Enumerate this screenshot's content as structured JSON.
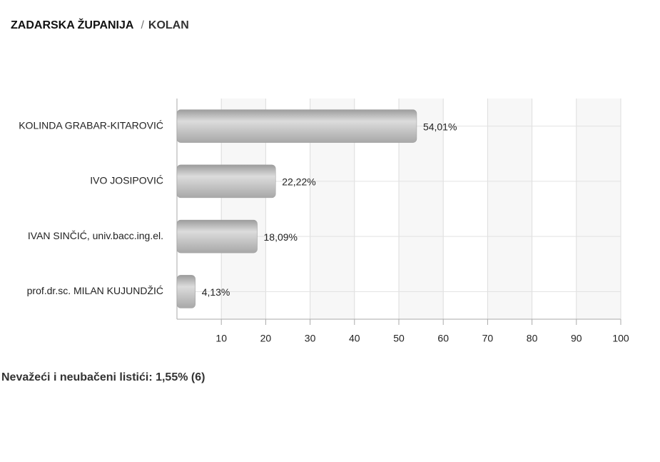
{
  "header": {
    "region": "ZADARSKA ŽUPANIJA",
    "separator": "/",
    "place": "KOLAN"
  },
  "chart_data": {
    "type": "bar",
    "orientation": "horizontal",
    "categories": [
      "KOLINDA GRABAR-KITAROVIĆ",
      "IVO JOSIPOVIĆ",
      "IVAN SINČIĆ, univ.bacc.ing.el.",
      "prof.dr.sc. MILAN KUJUNDŽIĆ"
    ],
    "values": [
      54.01,
      22.22,
      18.09,
      4.13
    ],
    "value_labels": [
      "54,01%",
      "22,22%",
      "18,09%",
      "4,13%"
    ],
    "color": "#b5b5b5",
    "xlim": [
      0,
      100
    ],
    "xticks": [
      10,
      20,
      30,
      40,
      50,
      60,
      70,
      80,
      90,
      100
    ],
    "grid": true
  },
  "footer": {
    "text": "Nevažeći i neubačeni listići: 1,55% (6)"
  }
}
